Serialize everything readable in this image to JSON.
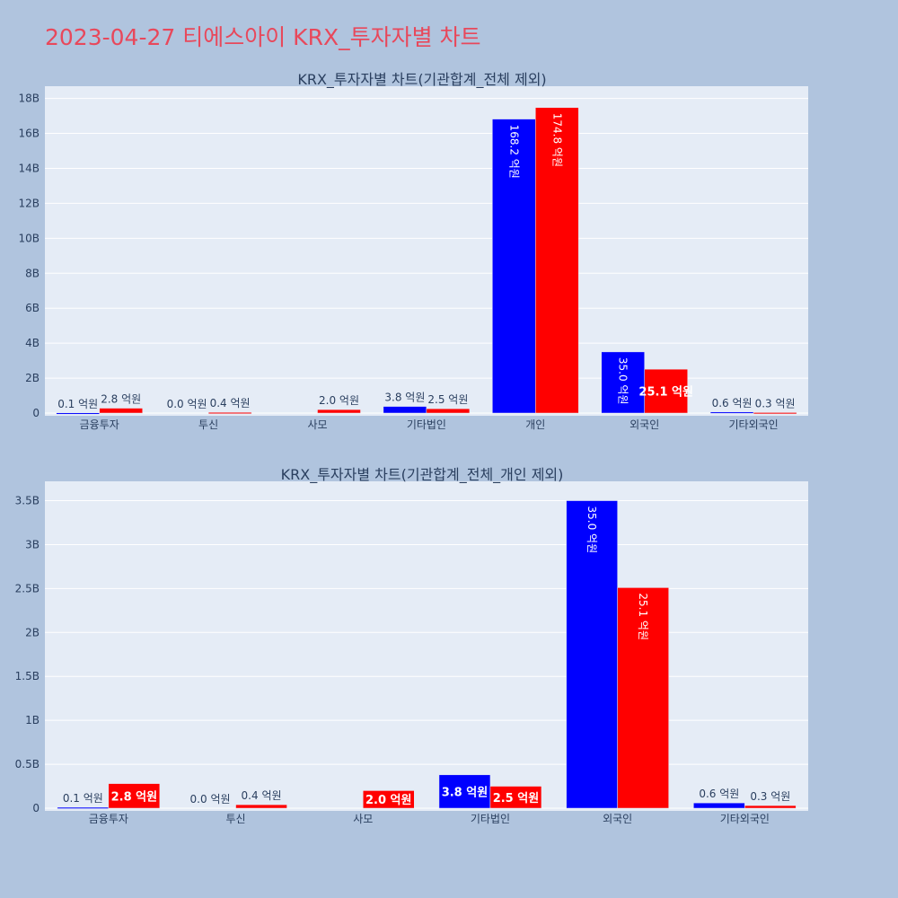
{
  "page_title": "2023-04-27 티에스아이 KRX_투자자별 차트",
  "colors": {
    "page_bg": "#b0c4de",
    "plot_bg": "#e5ecf6",
    "grid": "#ffffff",
    "title": "#e8485b",
    "text": "#2a3f5f",
    "buy": "#0000ff",
    "sell": "#ff0000"
  },
  "chart_data": [
    {
      "type": "bar",
      "title": "KRX_투자자별 차트(기관합계_전체 제외)",
      "categories": [
        "금융투자",
        "투신",
        "사모",
        "기타법인",
        "개인",
        "외국인",
        "기타외국인"
      ],
      "series": [
        {
          "color": "#0000ff",
          "values": [
            10000000,
            0,
            0,
            380000000,
            16820000000,
            3500000000,
            60000000
          ],
          "labels": [
            "0.1 억원",
            "0.0 억원",
            "",
            "3.8 억원",
            "168.2 억원",
            "35.0 억원",
            "0.6 억원"
          ]
        },
        {
          "color": "#ff0000",
          "values": [
            280000000,
            40000000,
            200000000,
            250000000,
            17480000000,
            2510000000,
            30000000
          ],
          "labels": [
            "2.8 억원",
            "0.4 억원",
            "2.0 억원",
            "2.5 억원",
            "174.8 억원",
            "25.1 억원",
            "0.3 억원"
          ]
        }
      ],
      "yticks": [
        0,
        2000000000,
        4000000000,
        6000000000,
        8000000000,
        10000000000,
        12000000000,
        14000000000,
        16000000000,
        18000000000
      ],
      "ytick_labels": [
        "0",
        "2B",
        "4B",
        "6B",
        "8B",
        "10B",
        "12B",
        "14B",
        "16B",
        "18B"
      ],
      "ylim": [
        0,
        18700000000
      ],
      "grid": true
    },
    {
      "type": "bar",
      "title": "KRX_투자자별 차트(기관합계_전체_개인 제외)",
      "categories": [
        "금융투자",
        "투신",
        "사모",
        "기타법인",
        "외국인",
        "기타외국인"
      ],
      "series": [
        {
          "color": "#0000ff",
          "values": [
            10000000,
            0,
            0,
            380000000,
            3500000000,
            60000000
          ],
          "labels": [
            "0.1 억원",
            "0.0 억원",
            "",
            "3.8 억원",
            "35.0 억원",
            "0.6 억원"
          ]
        },
        {
          "color": "#ff0000",
          "values": [
            280000000,
            40000000,
            200000000,
            250000000,
            2510000000,
            30000000
          ],
          "labels": [
            "2.8 억원",
            "0.4 억원",
            "2.0 억원",
            "2.5 억원",
            "25.1 억원",
            "0.3 억원"
          ]
        }
      ],
      "yticks": [
        0,
        500000000,
        1000000000,
        1500000000,
        2000000000,
        2500000000,
        3000000000,
        3500000000
      ],
      "ytick_labels": [
        "0",
        "0.5B",
        "1B",
        "1.5B",
        "2B",
        "2.5B",
        "3B",
        "3.5B"
      ],
      "ylim": [
        0,
        3720000000
      ],
      "grid": true
    }
  ]
}
